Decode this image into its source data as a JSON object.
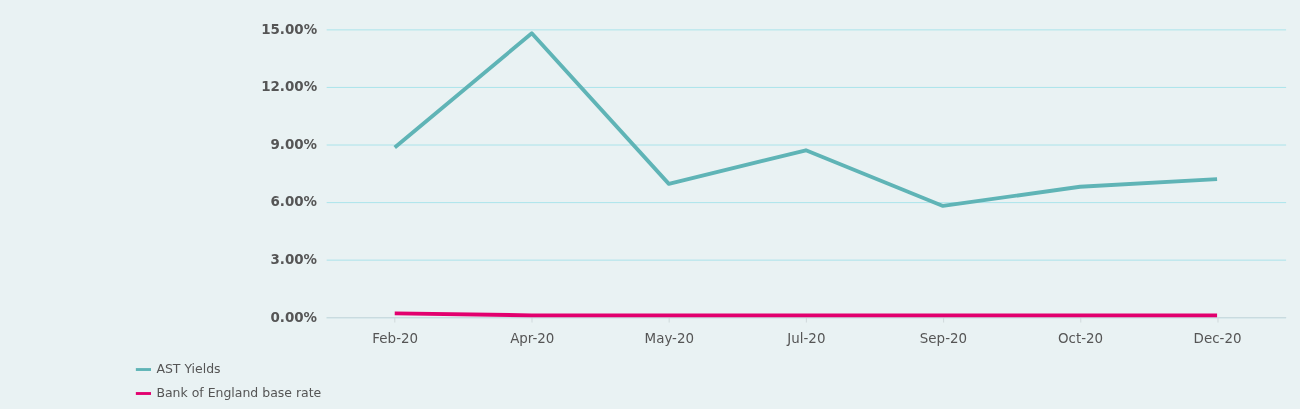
{
  "chart_data": {
    "type": "line",
    "categories": [
      "Feb-20",
      "Apr-20",
      "May-20",
      "Jul-20",
      "Sep-20",
      "Oct-20",
      "Dec-20"
    ],
    "series": [
      {
        "name": "AST Yields",
        "color": "#5fb4b6",
        "values": [
          8.85,
          14.8,
          6.95,
          8.7,
          5.8,
          6.8,
          7.2
        ]
      },
      {
        "name": "Bank of England base rate",
        "color": "#e2006e",
        "values": [
          0.2,
          0.1,
          0.1,
          0.1,
          0.1,
          0.1,
          0.1
        ]
      }
    ],
    "ylim": [
      0,
      15
    ],
    "yticks": [
      {
        "value": 0,
        "label": "0.00%"
      },
      {
        "value": 3,
        "label": "3.00%"
      },
      {
        "value": 6,
        "label": "6.00%"
      },
      {
        "value": 9,
        "label": "9.00%"
      },
      {
        "value": 12,
        "label": "12.00%"
      },
      {
        "value": 15,
        "label": "15.00%"
      }
    ],
    "grid": "y",
    "legend": "bottom left",
    "marker": "none",
    "line_style": "solid"
  }
}
